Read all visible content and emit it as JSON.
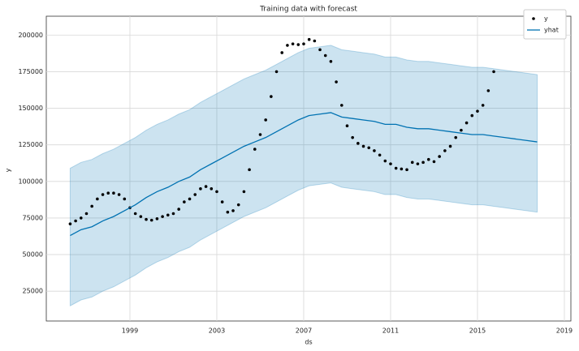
{
  "chart_data": {
    "type": "line",
    "title": "Training data with forecast",
    "x_label": "ds",
    "y_label": "y",
    "xlim": [
      1995.15,
      2019.3
    ],
    "ylim": [
      4600,
      212900
    ],
    "xticks": [
      1999,
      2003,
      2007,
      2011,
      2015,
      2019
    ],
    "yticks": [
      25000,
      50000,
      75000,
      100000,
      125000,
      150000,
      175000,
      200000
    ],
    "grid": true,
    "legend": "upper right",
    "series": [
      {
        "name": "y",
        "type": "scatter",
        "color": "#000000",
        "x": [
          1996.25,
          1996.5,
          1996.75,
          1997,
          1997.25,
          1997.5,
          1997.75,
          1998,
          1998.25,
          1998.5,
          1998.75,
          1999,
          1999.25,
          1999.5,
          1999.75,
          2000,
          2000.25,
          2000.5,
          2000.75,
          2001,
          2001.25,
          2001.5,
          2001.75,
          2002,
          2002.25,
          2002.5,
          2002.75,
          2003,
          2003.25,
          2003.5,
          2003.75,
          2004,
          2004.25,
          2004.5,
          2004.75,
          2005,
          2005.25,
          2005.5,
          2005.75,
          2006,
          2006.25,
          2006.5,
          2006.75,
          2007,
          2007.25,
          2007.5,
          2007.75,
          2008,
          2008.25,
          2008.5,
          2008.75,
          2009,
          2009.25,
          2009.5,
          2009.75,
          2010,
          2010.25,
          2010.5,
          2010.75,
          2011,
          2011.25,
          2011.5,
          2011.75,
          2012,
          2012.25,
          2012.5,
          2012.75,
          2013,
          2013.25,
          2013.5,
          2013.75,
          2014,
          2014.25,
          2014.5,
          2014.75,
          2015,
          2015.25,
          2015.5,
          2015.75
        ],
        "values": [
          71000,
          73000,
          75000,
          78000,
          83000,
          88000,
          91000,
          92000,
          92000,
          91000,
          88000,
          82000,
          78000,
          76000,
          74000,
          73500,
          74500,
          76000,
          77000,
          78000,
          81000,
          86000,
          88000,
          91000,
          95000,
          96500,
          95000,
          93000,
          86000,
          79000,
          80000,
          84000,
          93000,
          108000,
          122000,
          132000,
          142000,
          158000,
          175000,
          188000,
          193000,
          194000,
          193500,
          194000,
          197000,
          196000,
          190000,
          186000,
          182000,
          168000,
          152000,
          138000,
          130000,
          126000,
          124000,
          123000,
          121000,
          118000,
          114000,
          112000,
          109000,
          108500,
          108000,
          113000,
          112000,
          113000,
          115000,
          113500,
          117000,
          121000,
          124000,
          130000,
          135000,
          140000,
          145000,
          148000,
          152000,
          162000,
          175000
        ]
      },
      {
        "name": "yhat",
        "color": "#0072B2",
        "x": [
          1996.25,
          1996.75,
          1997.25,
          1997.75,
          1998.25,
          1998.75,
          1999.25,
          1999.75,
          2000.25,
          2000.75,
          2001.25,
          2001.75,
          2002.25,
          2002.75,
          2003.25,
          2003.75,
          2004.25,
          2004.75,
          2005.25,
          2005.75,
          2006.25,
          2006.75,
          2007.25,
          2007.75,
          2008.25,
          2008.75,
          2009.25,
          2009.75,
          2010.25,
          2010.75,
          2011.25,
          2011.75,
          2012.25,
          2012.75,
          2013.25,
          2013.75,
          2014.25,
          2014.75,
          2015.25,
          2015.75,
          2016.25,
          2016.75,
          2017.25,
          2017.75
        ],
        "values": [
          63000,
          67000,
          69000,
          73000,
          76000,
          80000,
          84000,
          89000,
          93000,
          96000,
          100000,
          103000,
          108000,
          112000,
          116000,
          120000,
          124000,
          127000,
          130000,
          134000,
          138000,
          142000,
          145000,
          146000,
          147000,
          144000,
          143000,
          142000,
          141000,
          139000,
          139000,
          137000,
          136000,
          136000,
          135000,
          134000,
          133000,
          132000,
          132000,
          131000,
          130000,
          129000,
          128000,
          127000
        ]
      }
    ],
    "band": {
      "color": "#0072B2",
      "lower": [
        15000,
        19000,
        21000,
        25000,
        28000,
        32000,
        36000,
        41000,
        45000,
        48000,
        52000,
        55000,
        60000,
        64000,
        68000,
        72000,
        76000,
        79000,
        82000,
        86000,
        90000,
        94000,
        97000,
        98000,
        99000,
        96000,
        95000,
        94000,
        93000,
        91000,
        91000,
        89000,
        88000,
        88000,
        87000,
        86000,
        85000,
        84000,
        84000,
        83000,
        82000,
        81000,
        80000,
        79000
      ],
      "upper": [
        109000,
        113000,
        115000,
        119000,
        122000,
        126000,
        130000,
        135000,
        139000,
        142000,
        146000,
        149000,
        154000,
        158000,
        162000,
        166000,
        170000,
        173000,
        176000,
        180000,
        184000,
        188000,
        191000,
        192000,
        193000,
        190000,
        189000,
        188000,
        187000,
        185000,
        185000,
        183000,
        182000,
        182000,
        181000,
        180000,
        179000,
        178000,
        178000,
        177000,
        176000,
        175000,
        174000,
        173000
      ]
    }
  }
}
